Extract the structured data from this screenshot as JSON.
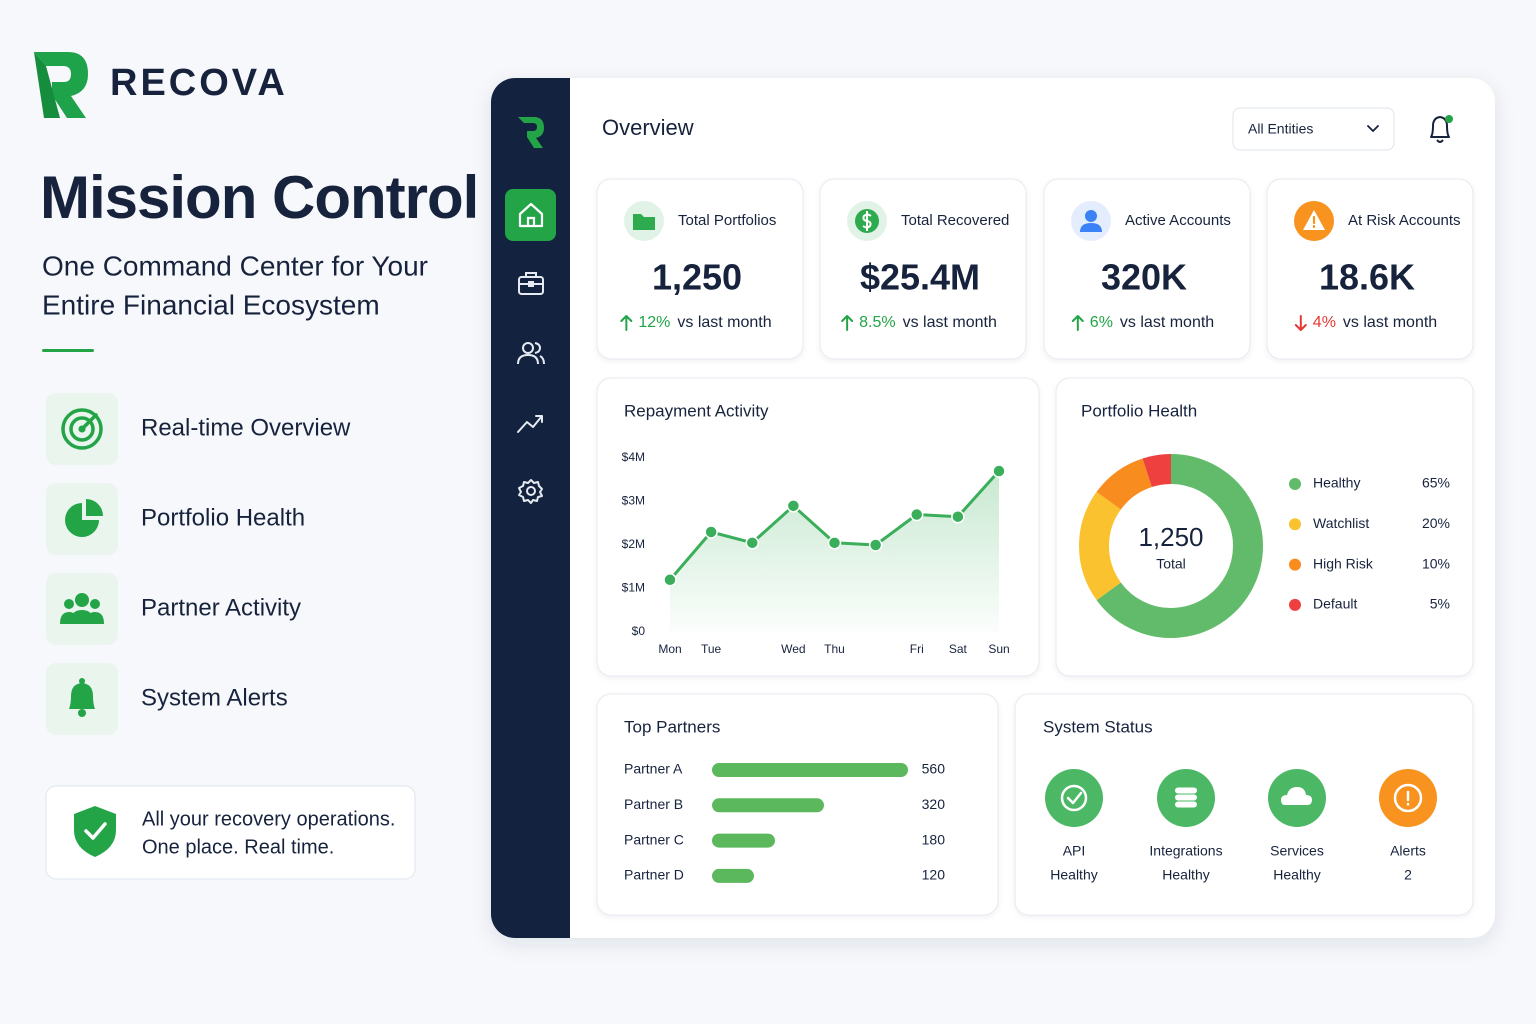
{
  "brand": {
    "name": "RECOVA"
  },
  "hero": {
    "title": "Mission Control",
    "subtitle": [
      "One Command Center for Your",
      "Entire Financial Ecosystem"
    ]
  },
  "features": [
    "Real-time Overview",
    "Portfolio Health",
    "Partner Activity",
    "System Alerts"
  ],
  "callout": {
    "text": "All your recovery operations.",
    "highlight": "One place. Real time."
  },
  "dashboard": {
    "title": "Overview",
    "filter": "All Entities",
    "kpis": [
      {
        "label": "Total Portfolios",
        "value": "1,250",
        "change": "12%",
        "trend": "up",
        "note": "vs last month",
        "color": "#2eaa4f"
      },
      {
        "label": "Total Recovered",
        "value": "$25.4M",
        "change": "8.5%",
        "trend": "up",
        "note": "vs last month",
        "color": "#2eaa4f"
      },
      {
        "label": "Active Accounts",
        "value": "320K",
        "change": "6%",
        "trend": "up",
        "note": "vs last month",
        "color": "#3b82f6"
      },
      {
        "label": "At Risk Accounts",
        "value": "18.6K",
        "change": "4%",
        "trend": "down",
        "note": "vs last month",
        "color": "#f7931e"
      }
    ]
  },
  "chart_data": [
    {
      "type": "line",
      "title": "Repayment Activity",
      "categories": [
        "Mon",
        "Tue",
        null,
        "Wed",
        "Thu",
        null,
        "Fri",
        "Sat",
        "Sun"
      ],
      "series": [
        {
          "color": "#3aae5a",
          "values": [
            1200000,
            2300000,
            2050000,
            2900000,
            2050000,
            2000000,
            2700000,
            2650000,
            3700000
          ]
        }
      ],
      "ylim": [
        0,
        4000000
      ],
      "yticks": [
        {
          "value": 0,
          "label": "$0"
        },
        {
          "value": 1000000,
          "label": "$1M"
        },
        {
          "value": 2000000,
          "label": "$2M"
        },
        {
          "value": 3000000,
          "label": "$3M"
        },
        {
          "value": 4000000,
          "label": "$4M"
        }
      ],
      "area": true
    },
    {
      "type": "pie",
      "title": "Portfolio Health",
      "donut": true,
      "center": {
        "value": "1,250",
        "label": "Total"
      },
      "categories": [
        "Healthy",
        "Watchlist",
        "High Risk",
        "Default"
      ],
      "values": [
        65,
        20,
        10,
        5
      ],
      "value_labels": [
        "65%",
        "20%",
        "10%",
        "5%"
      ],
      "colors": [
        "#62bb6b",
        "#fbc22f",
        "#f98c1f",
        "#ef4040"
      ]
    },
    {
      "type": "bar",
      "orientation": "horizontal",
      "title": "Top Partners",
      "categories": [
        "Partner A",
        "Partner B",
        "Partner C",
        "Partner D"
      ],
      "values": [
        560,
        320,
        180,
        120
      ],
      "color": "#5cb85c"
    }
  ],
  "status": {
    "title": "System Status",
    "items": [
      {
        "name": "API",
        "state": "Healthy",
        "color": "#4cb865"
      },
      {
        "name": "Integrations",
        "state": "Healthy",
        "color": "#4cb865"
      },
      {
        "name": "Services",
        "state": "Healthy",
        "color": "#4cb865"
      },
      {
        "name": "Alerts",
        "state": "2",
        "color": "#f7931e"
      }
    ]
  }
}
